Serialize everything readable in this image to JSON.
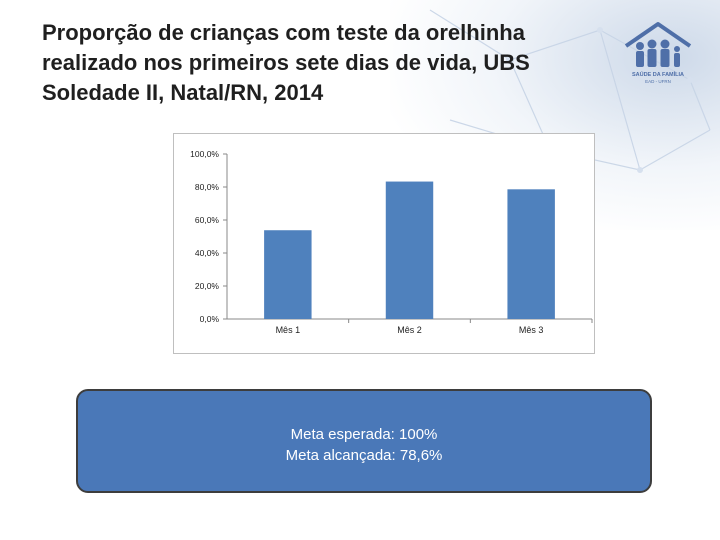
{
  "title": "Proporção de crianças com teste da orelhinha realizado nos primeiros sete dias de vida, UBS Soledade II, Natal/RN, 2014",
  "logo": {
    "text_line1": "SAÚDE DA FAMÍLIA",
    "text_line2": "EAD - UFRN"
  },
  "chart_data": {
    "type": "bar",
    "categories": [
      "Mês 1",
      "Mês 2",
      "Mês 3"
    ],
    "values": [
      53.8,
      83.3,
      78.6
    ],
    "unit": "%",
    "title": "",
    "xlabel": "",
    "ylabel": "",
    "ylim": [
      0,
      100
    ],
    "yticks": [
      "0,0%",
      "20,0%",
      "40,0%",
      "60,0%",
      "80,0%",
      "100,0%"
    ],
    "grid": false,
    "legend": "none",
    "bar_color": "#4f81bd"
  },
  "meta_box": {
    "line1": "Meta esperada: 100%",
    "line2": "Meta alcançada: 78,6%",
    "color": "#4a78b8"
  }
}
